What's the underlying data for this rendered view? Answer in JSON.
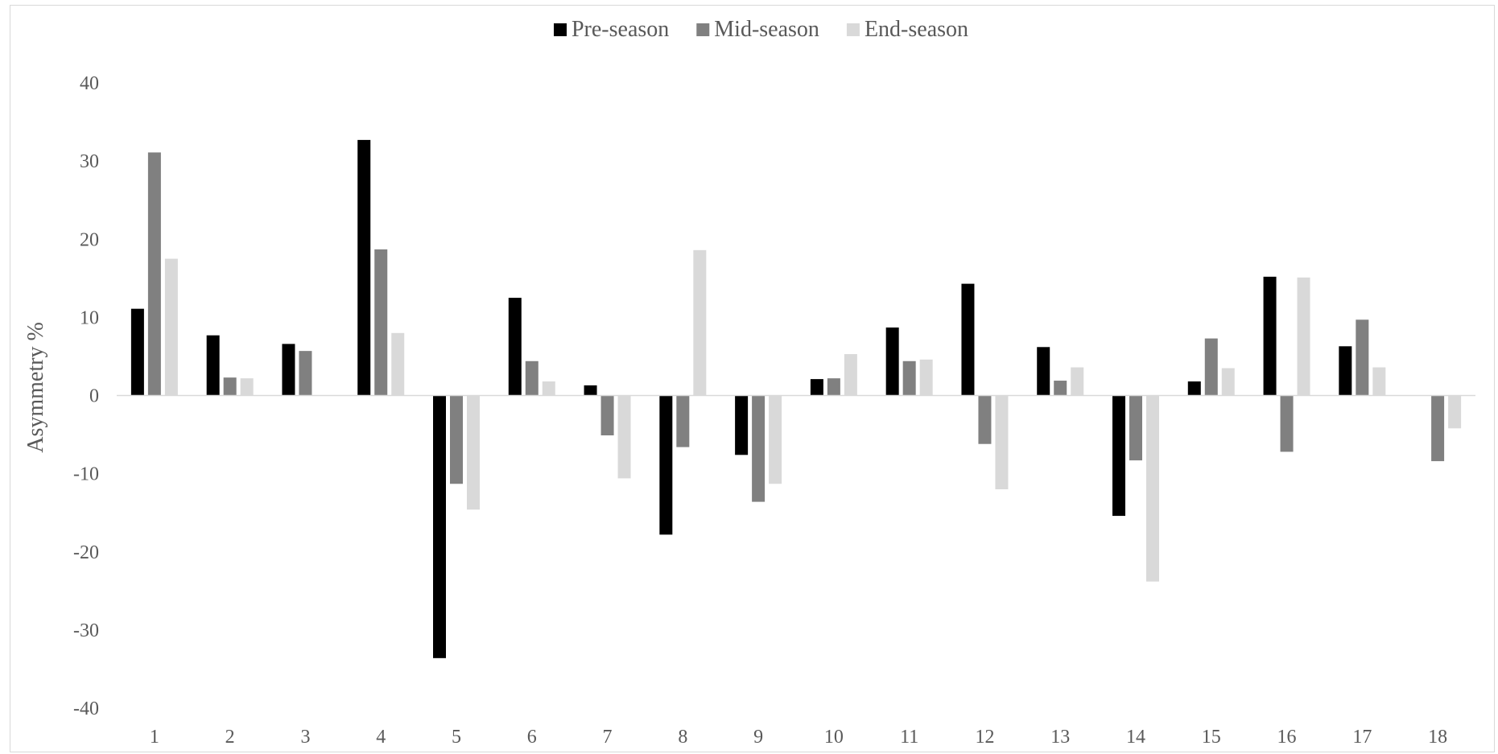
{
  "chart_data": {
    "type": "bar",
    "categories": [
      "1",
      "2",
      "3",
      "4",
      "5",
      "6",
      "7",
      "8",
      "9",
      "10",
      "11",
      "12",
      "13",
      "14",
      "15",
      "16",
      "17",
      "18"
    ],
    "series": [
      {
        "name": "Pre-season",
        "color": "#000000",
        "values": [
          11.1,
          7.7,
          6.6,
          32.7,
          -33.6,
          12.5,
          1.3,
          -17.8,
          -7.6,
          2.1,
          8.7,
          14.3,
          6.2,
          -15.4,
          1.8,
          15.2,
          6.3,
          0
        ]
      },
      {
        "name": "Mid-season",
        "color": "#808080",
        "values": [
          31.1,
          2.3,
          5.7,
          18.7,
          -11.3,
          4.4,
          -5.1,
          -6.6,
          -13.6,
          2.2,
          4.4,
          -6.2,
          1.9,
          -8.3,
          7.3,
          -7.2,
          9.7,
          -8.4
        ]
      },
      {
        "name": "End-season",
        "color": "#d9d9d9",
        "values": [
          17.5,
          2.2,
          0,
          8.0,
          -14.6,
          1.8,
          -10.6,
          18.6,
          -11.3,
          5.3,
          4.6,
          -12.0,
          3.6,
          -23.8,
          3.5,
          15.1,
          3.6,
          -4.2
        ]
      }
    ],
    "xlabel": "",
    "ylabel": "Asymmetry %",
    "ylim": [
      -40,
      40
    ],
    "yticks": [
      "40",
      "30",
      "20",
      "10",
      "0",
      "-10",
      "-20",
      "-30",
      "-40"
    ],
    "legend_position": "top-center",
    "grid": false
  }
}
